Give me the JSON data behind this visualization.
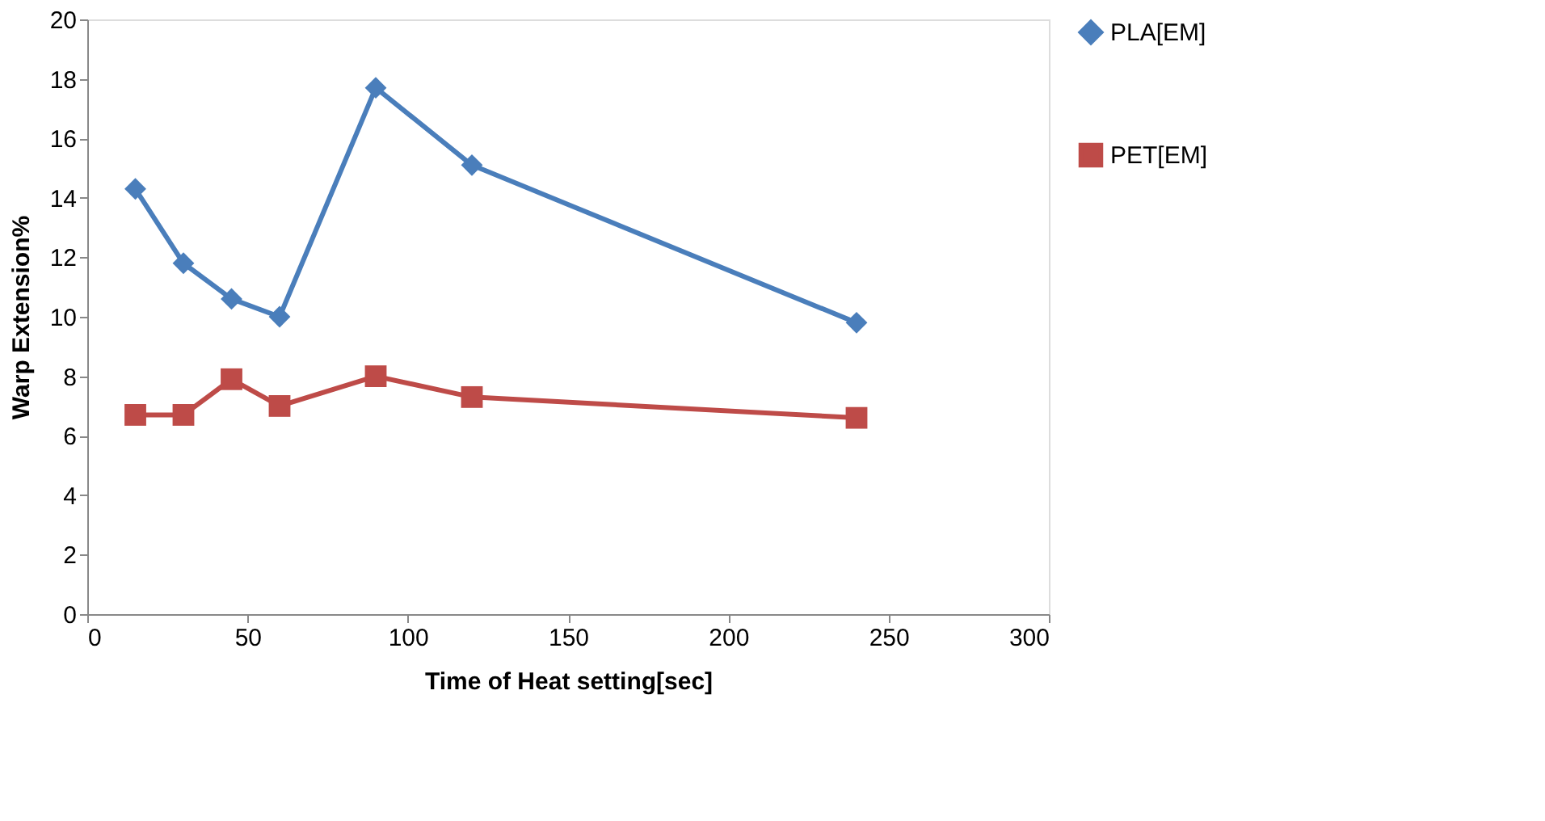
{
  "chart_data": {
    "type": "line",
    "xlabel": "Time of Heat setting[sec]",
    "ylabel": "Warp Extension%",
    "x": [
      15,
      30,
      45,
      60,
      90,
      120,
      240
    ],
    "series": [
      {
        "name": "PLA[EM]",
        "color": "#4a7ebb",
        "marker": "diamond",
        "values": [
          14.3,
          11.8,
          10.6,
          10.0,
          17.7,
          15.1,
          9.8
        ]
      },
      {
        "name": "PET[EM]",
        "color": "#be4b48",
        "marker": "square",
        "values": [
          6.7,
          6.7,
          7.9,
          7.0,
          8.0,
          7.3,
          6.6
        ]
      }
    ],
    "xlim": [
      0,
      300
    ],
    "xticks": [
      0,
      50,
      100,
      150,
      200,
      250,
      300
    ],
    "ylim": [
      0,
      20
    ],
    "yticks": [
      0,
      2,
      4,
      6,
      8,
      10,
      12,
      14,
      16,
      18,
      20
    ],
    "grid": false,
    "legend": "right",
    "line_style": "solid"
  }
}
